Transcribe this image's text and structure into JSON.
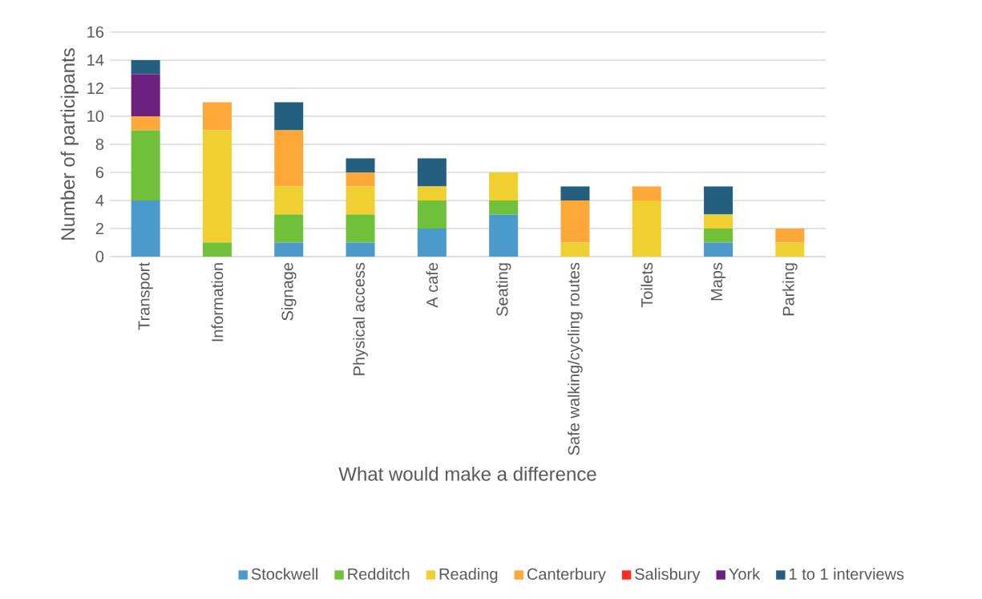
{
  "chart_data": {
    "type": "bar",
    "stacked": true,
    "xlabel": "What would make a difference",
    "ylabel": "Number of participants",
    "categories": [
      "Transport",
      "Information",
      "Signage",
      "Physical access",
      "A cafe",
      "Seating",
      "Safe walking/cycling routes",
      "Toilets",
      "Maps",
      "Parking"
    ],
    "series": [
      {
        "name": "Stockwell",
        "color": "#4a9bcc",
        "values": [
          4,
          0,
          1,
          1,
          2,
          3,
          0,
          0,
          1,
          0
        ]
      },
      {
        "name": "Redditch",
        "color": "#70c03a",
        "values": [
          5,
          1,
          2,
          2,
          2,
          1,
          0,
          0,
          1,
          0
        ]
      },
      {
        "name": "Reading",
        "color": "#f0d030",
        "values": [
          0,
          8,
          2,
          2,
          1,
          2,
          1,
          4,
          1,
          1
        ]
      },
      {
        "name": "Canterbury",
        "color": "#ffa83a",
        "values": [
          1,
          2,
          4,
          1,
          0,
          0,
          3,
          1,
          0,
          1
        ]
      },
      {
        "name": "Salisbury",
        "color": "#ff2a22",
        "values": [
          0,
          0,
          0,
          0,
          0,
          0,
          0,
          0,
          0,
          0
        ]
      },
      {
        "name": "York",
        "color": "#6c2080",
        "values": [
          3,
          0,
          0,
          0,
          0,
          0,
          0,
          0,
          0,
          0
        ]
      },
      {
        "name": "1 to 1 interviews",
        "color": "#255f80",
        "values": [
          1,
          0,
          2,
          1,
          2,
          0,
          1,
          0,
          2,
          0
        ]
      }
    ],
    "ylim": [
      0,
      16
    ],
    "yticks": [
      0,
      2,
      4,
      6,
      8,
      10,
      12,
      14,
      16
    ],
    "grid": "y",
    "legend": "bottom"
  }
}
